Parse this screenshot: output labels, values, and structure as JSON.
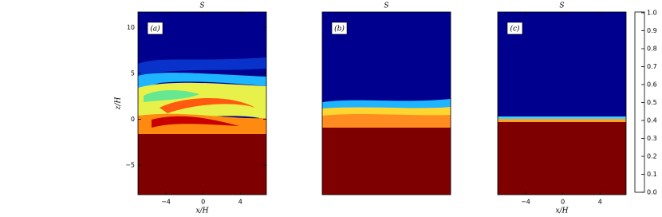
{
  "chart_data": [
    {
      "type": "image",
      "title": "S",
      "panel_label": "(a)",
      "xlabel": "x/H",
      "ylabel": "z/H",
      "xlim": [
        -7,
        6.8
      ],
      "xticks": [
        {
          "value": -4,
          "label": "−4"
        },
        0,
        4
      ],
      "ylim": [
        -8.2,
        11.7
      ],
      "yticks": [
        {
          "value": -5,
          "label": "−5"
        },
        0,
        5,
        10
      ]
    },
    {
      "type": "image",
      "title": "S",
      "panel_label": "(b)",
      "xlim": [
        -7,
        6.8
      ]
    },
    {
      "type": "image",
      "title": "S",
      "panel_label": "(c)",
      "xlabel": "x/H",
      "xlim": [
        -7,
        6.8
      ],
      "xticks": [
        {
          "value": -4,
          "label": "−4"
        },
        0,
        4
      ]
    }
  ],
  "colorbar": {
    "clim": [
      0,
      1
    ],
    "ticks": [
      {
        "value": 0,
        "label": "0.0"
      },
      {
        "value": 0.1,
        "label": "0.1"
      },
      {
        "value": 0.2,
        "label": "0.2"
      },
      {
        "value": 0.3,
        "label": "0.3"
      },
      {
        "value": 0.4,
        "label": "0.4"
      },
      {
        "value": 0.5,
        "label": "0.5"
      },
      {
        "value": 0.6,
        "label": "0.6"
      },
      {
        "value": 0.7,
        "label": "0.7"
      },
      {
        "value": 0.8,
        "label": "0.8"
      },
      {
        "value": 0.9,
        "label": "0.9"
      },
      {
        "value": 1,
        "label": "1.0"
      }
    ]
  }
}
